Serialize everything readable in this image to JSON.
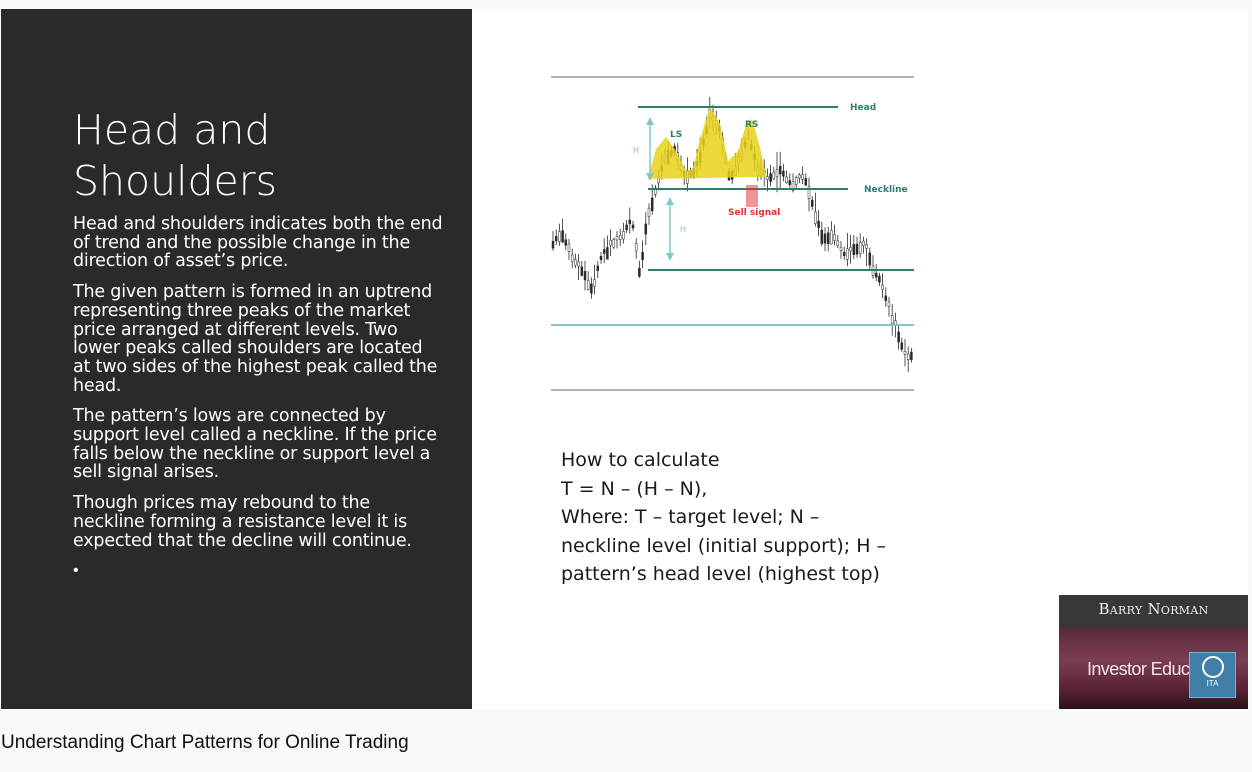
{
  "slide": {
    "title_line1": "Head and",
    "title_line2": "Shoulders",
    "paragraphs": [
      "Head and shoulders indicates both the end of trend and the possible change in the direction of asset’s price.",
      "The given pattern is formed in an uptrend representing three peaks of the market price arranged at different levels. Two lower peaks called shoulders are located at two sides of the highest peak called the head.",
      "The pattern’s lows are connected by support level called a neckline. If the price falls below the neckline or support level a sell signal arises.",
      "Though prices may rebound to the neckline forming a resistance level it is expected that the decline will continue."
    ],
    "bullet": "•"
  },
  "chart": {
    "labels": {
      "head": "Head",
      "neckline": "Neckline",
      "ls": "LS",
      "rs": "RS",
      "sell_signal": "Sell signal",
      "h1": "H",
      "h2": "H"
    },
    "colors": {
      "pattern": "#e8d21a",
      "line": "#2e7d6e",
      "target": "#7fc8c8",
      "signal": "#e03030",
      "candles": "#2a2a2a"
    }
  },
  "formula": {
    "line1": "How to calculate",
    "line2": " T = N – (H – N),",
    "line3": "Where: T – target level; N –",
    "line4": "neckline level (initial support); H –",
    "line5": "pattern’s head level (highest top)"
  },
  "webcam": {
    "name": "Barry Norman",
    "subtitle": "Investor Educat",
    "badge": "ITA"
  },
  "video_title": "Understanding Chart Patterns for Online Trading"
}
